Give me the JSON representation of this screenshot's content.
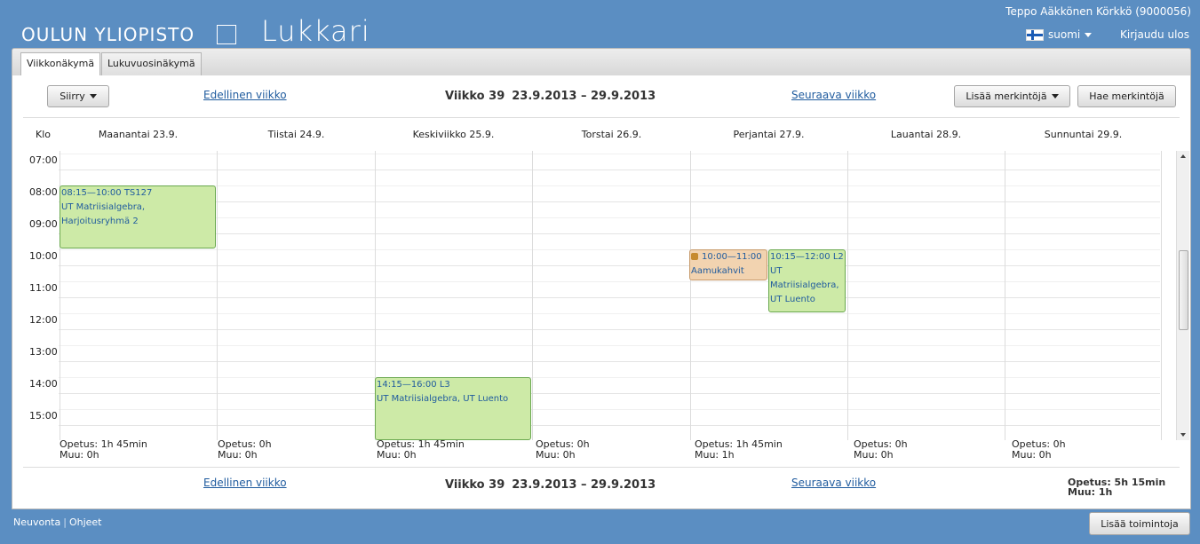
{
  "header": {
    "university": "OULUN YLIOPISTO",
    "app_title": "Lukkari",
    "user": "Teppo Aäkkönen Körkkö (9000056)",
    "language": "suomi",
    "logout": "Kirjaudu ulos"
  },
  "tabs": [
    {
      "label": "Viikkonäkymä",
      "active": true
    },
    {
      "label": "Lukuvuosinäkymä",
      "active": false
    }
  ],
  "toolbar": {
    "goto": "Siirry",
    "prev": "Edellinen viikko",
    "week_label": "Viikko 39",
    "week_range": "23.9.2013 – 29.9.2013",
    "next": "Seuraava viikko",
    "add_marks": "Lisää merkintöjä",
    "find_marks": "Hae merkintöjä"
  },
  "calendar": {
    "time_header": "Klo",
    "days": [
      "Maanantai 23.9.",
      "Tiistai 24.9.",
      "Keskiviikko 25.9.",
      "Torstai 26.9.",
      "Perjantai 27.9.",
      "Lauantai 28.9.",
      "Sunnuntai 29.9."
    ],
    "hours": [
      "07:00",
      "08:00",
      "09:00",
      "10:00",
      "11:00",
      "12:00",
      "13:00",
      "14:00",
      "15:00"
    ],
    "events": [
      {
        "day": 0,
        "time": "08:15—10:00 TS127",
        "title": "UT Matriisialgebra, Harjoitusryhmä 2"
      },
      {
        "day": 2,
        "time": "14:15—16:00 L3",
        "title": "UT Matriisialgebra, UT Luento"
      },
      {
        "day": 4,
        "time": "10:00—11:00",
        "title": "Aamukahvit",
        "locked": true
      },
      {
        "day": 4,
        "time": "10:15—12:00 L2",
        "title": "UT Matriisialgebra, UT Luento"
      }
    ],
    "summaries": [
      {
        "opetus": "Opetus: 1h 45min",
        "muu": "Muu: 0h"
      },
      {
        "opetus": "Opetus: 0h",
        "muu": "Muu: 0h"
      },
      {
        "opetus": "Opetus: 1h 45min",
        "muu": "Muu: 0h"
      },
      {
        "opetus": "Opetus: 0h",
        "muu": "Muu: 0h"
      },
      {
        "opetus": "Opetus: 1h 45min",
        "muu": "Muu: 1h"
      },
      {
        "opetus": "Opetus: 0h",
        "muu": "Muu: 0h"
      },
      {
        "opetus": "Opetus: 0h",
        "muu": "Muu: 0h"
      }
    ],
    "total": {
      "opetus": "Opetus: 5h 15min",
      "muu": "Muu: 1h"
    }
  },
  "footer": {
    "help": "Neuvonta",
    "guide": "Ohjeet",
    "add_actions": "Lisää toimintoja"
  },
  "colors": {
    "background": "#5b8ec2",
    "event_green": "#cdeaa7",
    "event_orange": "#f2d3b0",
    "link": "#1f5b9e"
  }
}
